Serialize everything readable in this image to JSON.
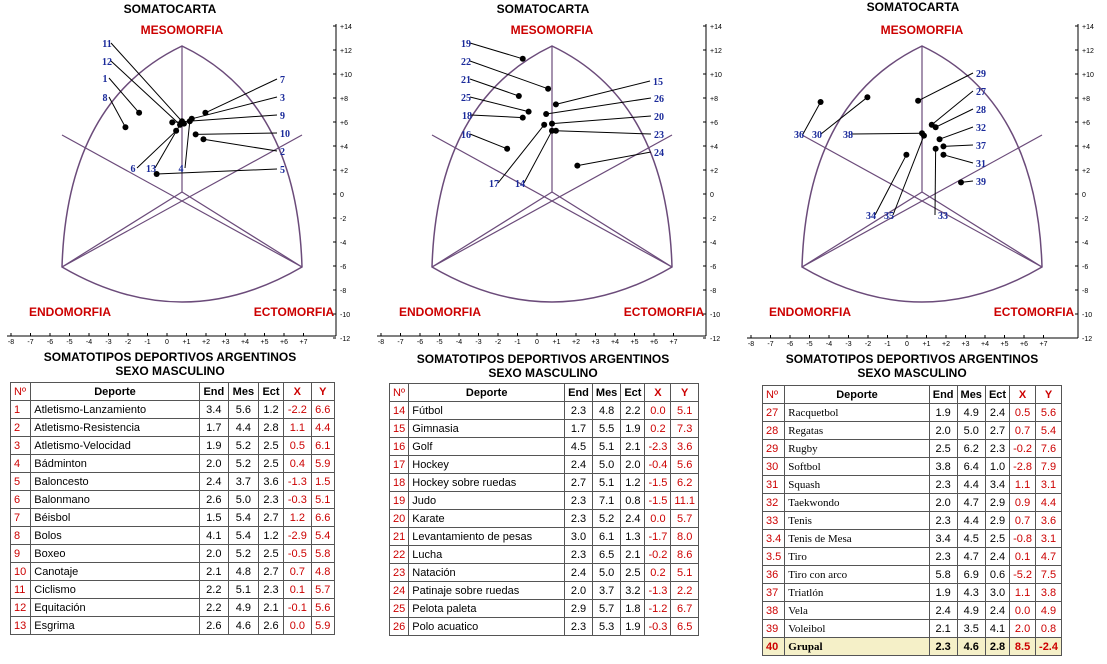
{
  "labels": {
    "chart_title": "SOMATOCARTA",
    "top": "MESOMORFIA",
    "left": "ENDOMORFIA",
    "right": "ECTOMORFIA",
    "table_title_1": "SOMATOTIPOS DEPORTIVOS ARGENTINOS",
    "table_title_2": "SEXO MASCULINO"
  },
  "colors": {
    "accent_red": "#c00000",
    "point_label_blue": "#1a2a9a",
    "outline": "#6b4b7a"
  },
  "columns": [
    "Nº",
    "Deporte",
    "End",
    "Mes",
    "Ect",
    "X",
    "Y"
  ],
  "chart_data": [
    {
      "type": "scatter",
      "title": "SOMATOCARTA",
      "xlim": [
        -8,
        7
      ],
      "ylim": [
        -12,
        14
      ],
      "x_ticks": [
        "-8",
        "-7",
        "-6",
        "-5",
        "-4",
        "-3",
        "-2",
        "-1",
        "0",
        "+1",
        "+2",
        "+3",
        "+4",
        "+5",
        "+6",
        "+7"
      ],
      "y_ticks": [
        "+14",
        "+12",
        "+10",
        "+8",
        "+6",
        "+4",
        "+2",
        "0",
        "-2",
        "-4",
        "-6",
        "-8",
        "-10",
        "-12"
      ],
      "points": [
        {
          "id": "1",
          "x": -2.2,
          "y": 6.6
        },
        {
          "id": "2",
          "x": 1.1,
          "y": 4.4
        },
        {
          "id": "3",
          "x": 0.5,
          "y": 6.1
        },
        {
          "id": "4",
          "x": 0.4,
          "y": 5.9
        },
        {
          "id": "5",
          "x": -1.3,
          "y": 1.5
        },
        {
          "id": "6",
          "x": -0.3,
          "y": 5.1
        },
        {
          "id": "7",
          "x": 1.2,
          "y": 6.6
        },
        {
          "id": "8",
          "x": -2.9,
          "y": 5.4
        },
        {
          "id": "9",
          "x": -0.5,
          "y": 5.8
        },
        {
          "id": "10",
          "x": 0.7,
          "y": 4.8
        },
        {
          "id": "11",
          "x": 0.1,
          "y": 5.7
        },
        {
          "id": "12",
          "x": -0.1,
          "y": 5.6
        },
        {
          "id": "13",
          "x": 0.0,
          "y": 5.9
        }
      ]
    },
    {
      "type": "scatter",
      "title": "SOMATOCARTA",
      "xlim": [
        -8,
        7
      ],
      "ylim": [
        -12,
        14
      ],
      "x_ticks": [
        "-8",
        "-7",
        "-6",
        "-5",
        "-4",
        "-3",
        "-2",
        "-1",
        "0",
        "+1",
        "+2",
        "+3",
        "+4",
        "+5",
        "+6",
        "+7"
      ],
      "y_ticks": [
        "+14",
        "+12",
        "+10",
        "+8",
        "+6",
        "+4",
        "+2",
        "0",
        "-2",
        "-4",
        "-6",
        "-8",
        "-10",
        "-12"
      ],
      "points": [
        {
          "id": "14",
          "x": 0.0,
          "y": 5.1
        },
        {
          "id": "15",
          "x": 0.2,
          "y": 7.3
        },
        {
          "id": "16",
          "x": -2.3,
          "y": 3.6
        },
        {
          "id": "17",
          "x": -0.4,
          "y": 5.6
        },
        {
          "id": "18",
          "x": -1.5,
          "y": 6.2
        },
        {
          "id": "19",
          "x": -1.5,
          "y": 11.1
        },
        {
          "id": "20",
          "x": 0.0,
          "y": 5.7
        },
        {
          "id": "21",
          "x": -1.7,
          "y": 8.0
        },
        {
          "id": "22",
          "x": -0.2,
          "y": 8.6
        },
        {
          "id": "23",
          "x": 0.2,
          "y": 5.1
        },
        {
          "id": "24",
          "x": 1.3,
          "y": 2.2
        },
        {
          "id": "25",
          "x": -1.2,
          "y": 6.7
        },
        {
          "id": "26",
          "x": -0.3,
          "y": 6.5
        }
      ]
    },
    {
      "type": "scatter",
      "title": "SOMATOCARTA",
      "xlim": [
        -8,
        7
      ],
      "ylim": [
        -12,
        14
      ],
      "x_ticks": [
        "-8",
        "-7",
        "-6",
        "-5",
        "-4",
        "-3",
        "-2",
        "-1",
        "0",
        "+1",
        "+2",
        "+3",
        "+4",
        "+5",
        "+6",
        "+7"
      ],
      "y_ticks": [
        "+14",
        "+12",
        "+10",
        "+8",
        "+6",
        "+4",
        "+2",
        "0",
        "-2",
        "-4",
        "-6",
        "-8",
        "-10",
        "-12"
      ],
      "points": [
        {
          "id": "27",
          "x": 0.5,
          "y": 5.6
        },
        {
          "id": "28",
          "x": 0.7,
          "y": 5.4
        },
        {
          "id": "29",
          "x": -0.2,
          "y": 7.6
        },
        {
          "id": "30",
          "x": -2.8,
          "y": 7.9
        },
        {
          "id": "31",
          "x": 1.1,
          "y": 3.1
        },
        {
          "id": "32",
          "x": 0.9,
          "y": 4.4
        },
        {
          "id": "33",
          "x": 0.7,
          "y": 3.6
        },
        {
          "id": "34",
          "x": -0.8,
          "y": 3.1
        },
        {
          "id": "35",
          "x": 0.1,
          "y": 4.7
        },
        {
          "id": "36",
          "x": -5.2,
          "y": 7.5
        },
        {
          "id": "37",
          "x": 1.1,
          "y": 3.8
        },
        {
          "id": "38",
          "x": 0.0,
          "y": 4.9
        },
        {
          "id": "39",
          "x": 2.0,
          "y": 0.8
        }
      ]
    }
  ],
  "tables": [
    {
      "rows": [
        {
          "n": "1",
          "sport": "Atletismo-Lanzamiento",
          "end": "3.4",
          "mes": "5.6",
          "ect": "1.2",
          "x": "-2.2",
          "y": "6.6"
        },
        {
          "n": "2",
          "sport": "Atletismo-Resistencia",
          "end": "1.7",
          "mes": "4.4",
          "ect": "2.8",
          "x": "1.1",
          "y": "4.4"
        },
        {
          "n": "3",
          "sport": "Atletismo-Velocidad",
          "end": "1.9",
          "mes": "5.2",
          "ect": "2.5",
          "x": "0.5",
          "y": "6.1"
        },
        {
          "n": "4",
          "sport": "Bádminton",
          "end": "2.0",
          "mes": "5.2",
          "ect": "2.5",
          "x": "0.4",
          "y": "5.9"
        },
        {
          "n": "5",
          "sport": "Baloncesto",
          "end": "2.4",
          "mes": "3.7",
          "ect": "3.6",
          "x": "-1.3",
          "y": "1.5"
        },
        {
          "n": "6",
          "sport": "Balonmano",
          "end": "2.6",
          "mes": "5.0",
          "ect": "2.3",
          "x": "-0.3",
          "y": "5.1"
        },
        {
          "n": "7",
          "sport": "Béisbol",
          "end": "1.5",
          "mes": "5.4",
          "ect": "2.7",
          "x": "1.2",
          "y": "6.6"
        },
        {
          "n": "8",
          "sport": "Bolos",
          "end": "4.1",
          "mes": "5.4",
          "ect": "1.2",
          "x": "-2.9",
          "y": "5.4"
        },
        {
          "n": "9",
          "sport": "Boxeo",
          "end": "2.0",
          "mes": "5.2",
          "ect": "2.5",
          "x": "-0.5",
          "y": "5.8"
        },
        {
          "n": "10",
          "sport": "Canotaje",
          "end": "2.1",
          "mes": "4.8",
          "ect": "2.7",
          "x": "0.7",
          "y": "4.8"
        },
        {
          "n": "11",
          "sport": "Ciclismo",
          "end": "2.2",
          "mes": "5.1",
          "ect": "2.3",
          "x": "0.1",
          "y": "5.7"
        },
        {
          "n": "12",
          "sport": "Equitación",
          "end": "2.2",
          "mes": "4.9",
          "ect": "2.1",
          "x": "-0.1",
          "y": "5.6"
        },
        {
          "n": "13",
          "sport": "Esgrima",
          "end": "2.6",
          "mes": "4.6",
          "ect": "2.6",
          "x": "0.0",
          "y": "5.9"
        }
      ]
    },
    {
      "rows": [
        {
          "n": "14",
          "sport": "Fútbol",
          "end": "2.3",
          "mes": "4.8",
          "ect": "2.2",
          "x": "0.0",
          "y": "5.1"
        },
        {
          "n": "15",
          "sport": "Gimnasia",
          "end": "1.7",
          "mes": "5.5",
          "ect": "1.9",
          "x": "0.2",
          "y": "7.3"
        },
        {
          "n": "16",
          "sport": "Golf",
          "end": "4.5",
          "mes": "5.1",
          "ect": "2.1",
          "x": "-2.3",
          "y": "3.6"
        },
        {
          "n": "17",
          "sport": "Hockey",
          "end": "2.4",
          "mes": "5.0",
          "ect": "2.0",
          "x": "-0.4",
          "y": "5.6"
        },
        {
          "n": "18",
          "sport": "Hockey sobre ruedas",
          "end": "2.7",
          "mes": "5.1",
          "ect": "1.2",
          "x": "-1.5",
          "y": "6.2"
        },
        {
          "n": "19",
          "sport": "Judo",
          "end": "2.3",
          "mes": "7.1",
          "ect": "0.8",
          "x": "-1.5",
          "y": "11.1"
        },
        {
          "n": "20",
          "sport": "Karate",
          "end": "2.3",
          "mes": "5.2",
          "ect": "2.4",
          "x": "0.0",
          "y": "5.7"
        },
        {
          "n": "21",
          "sport": "Levantamiento de pesas",
          "end": "3.0",
          "mes": "6.1",
          "ect": "1.3",
          "x": "-1.7",
          "y": "8.0"
        },
        {
          "n": "22",
          "sport": "Lucha",
          "end": "2.3",
          "mes": "6.5",
          "ect": "2.1",
          "x": "-0.2",
          "y": "8.6"
        },
        {
          "n": "23",
          "sport": "Natación",
          "end": "2.4",
          "mes": "5.0",
          "ect": "2.5",
          "x": "0.2",
          "y": "5.1"
        },
        {
          "n": "24",
          "sport": "Patinaje sobre ruedas",
          "end": "2.0",
          "mes": "3.7",
          "ect": "3.2",
          "x": "-1.3",
          "y": "2.2"
        },
        {
          "n": "25",
          "sport": "Pelota paleta",
          "end": "2.9",
          "mes": "5.7",
          "ect": "1.8",
          "x": "-1.2",
          "y": "6.7"
        },
        {
          "n": "26",
          "sport": "Polo acuatico",
          "end": "2.3",
          "mes": "5.3",
          "ect": "1.9",
          "x": "-0.3",
          "y": "6.5"
        }
      ]
    },
    {
      "rows": [
        {
          "n": "27",
          "sport": "Racquetbol",
          "end": "1.9",
          "mes": "4.9",
          "ect": "2.4",
          "x": "0.5",
          "y": "5.6"
        },
        {
          "n": "28",
          "sport": "Regatas",
          "end": "2.0",
          "mes": "5.0",
          "ect": "2.7",
          "x": "0.7",
          "y": "5.4"
        },
        {
          "n": "29",
          "sport": "Rugby",
          "end": "2.5",
          "mes": "6.2",
          "ect": "2.3",
          "x": "-0.2",
          "y": "7.6"
        },
        {
          "n": "30",
          "sport": "Softbol",
          "end": "3.8",
          "mes": "6.4",
          "ect": "1.0",
          "x": "-2.8",
          "y": "7.9"
        },
        {
          "n": "31",
          "sport": "Squash",
          "end": "2.3",
          "mes": "4.4",
          "ect": "3.4",
          "x": "1.1",
          "y": "3.1"
        },
        {
          "n": "32",
          "sport": "Taekwondo",
          "end": "2.0",
          "mes": "4.7",
          "ect": "2.9",
          "x": "0.9",
          "y": "4.4"
        },
        {
          "n": "33",
          "sport": "Tenis",
          "end": "2.3",
          "mes": "4.4",
          "ect": "2.9",
          "x": "0.7",
          "y": "3.6"
        },
        {
          "n": "3.4",
          "sport": "Tenis de Mesa",
          "end": "3.4",
          "mes": "4.5",
          "ect": "2.5",
          "x": "-0.8",
          "y": "3.1"
        },
        {
          "n": "3.5",
          "sport": "Tiro",
          "end": "2.3",
          "mes": "4.7",
          "ect": "2.4",
          "x": "0.1",
          "y": "4.7"
        },
        {
          "n": "36",
          "sport": "Tiro con arco",
          "end": "5.8",
          "mes": "6.9",
          "ect": "0.6",
          "x": "-5.2",
          "y": "7.5"
        },
        {
          "n": "37",
          "sport": "Triatlón",
          "end": "1.9",
          "mes": "4.3",
          "ect": "3.0",
          "x": "1.1",
          "y": "3.8"
        },
        {
          "n": "38",
          "sport": "Vela",
          "end": "2.4",
          "mes": "4.9",
          "ect": "2.4",
          "x": "0.0",
          "y": "4.9"
        },
        {
          "n": "39",
          "sport": "Voleibol",
          "end": "2.1",
          "mes": "3.5",
          "ect": "4.1",
          "x": "2.0",
          "y": "0.8"
        }
      ],
      "total": {
        "n": "40",
        "sport": "Grupal",
        "end": "2.3",
        "mes": "4.6",
        "ect": "2.8",
        "x": "8.5",
        "y": "-2.4"
      }
    }
  ]
}
